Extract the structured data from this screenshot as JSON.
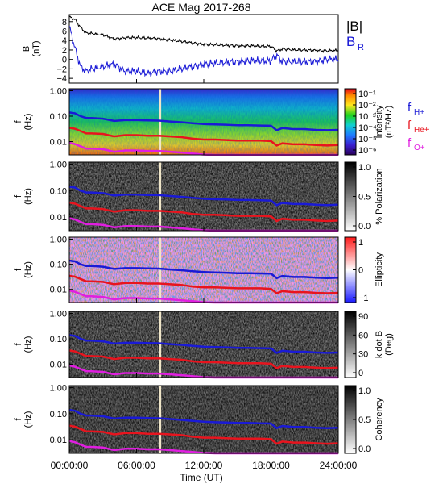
{
  "title": "ACE Mag 2017-268",
  "colors": {
    "B_total": "#000000",
    "B_R": "#1a1ad6",
    "f_H": "#1a1ad6",
    "f_He": "#e8141e",
    "f_O": "#e01ee0",
    "gap_stripe": "#f0e6c8"
  },
  "xaxis": {
    "label": "Time (UT)",
    "ticks": [
      "00:00:00",
      "06:00:00",
      "12:00:00",
      "18:00:00",
      "24:00:00"
    ],
    "range_hours": [
      0,
      24
    ]
  },
  "panels": [
    {
      "id": "b-field",
      "ylabel": "B (nT)",
      "yticks": [
        "8",
        "6",
        "4",
        "2",
        "0",
        "−2",
        "−4"
      ],
      "legend": [
        "|B|",
        "B",
        "R"
      ]
    },
    {
      "id": "intensity",
      "ylabel": "f (Hz)",
      "yticks": [
        "1.00",
        "0.10",
        "0.01"
      ],
      "colorbar_label": "Intensity (nT²/Hz)",
      "colorbar_ticks": [
        "10⁻¹",
        "10⁻²",
        "10⁻³",
        "10⁻⁴",
        "10⁻⁵",
        "10⁻⁶"
      ],
      "gyro_labels": [
        {
          "base": "f",
          "sub": "H+",
          "color": "#1a1ad6"
        },
        {
          "base": "f",
          "sub": "He+",
          "color": "#e8141e"
        },
        {
          "base": "f",
          "sub": "O+",
          "color": "#e01ee0"
        }
      ]
    },
    {
      "id": "polarization",
      "ylabel": "f (Hz)",
      "yticks": [
        "1.00",
        "0.10",
        "0.01"
      ],
      "colorbar_label": "% Polarization",
      "colorbar_ticks": [
        "1.0",
        "0.5",
        "0.0"
      ]
    },
    {
      "id": "ellipticity",
      "ylabel": "f (Hz)",
      "yticks": [
        "1.00",
        "0.10",
        "0.01"
      ],
      "colorbar_label": "Ellipticity",
      "colorbar_ticks": [
        "1",
        "0",
        "−1"
      ]
    },
    {
      "id": "kdotb",
      "ylabel": "f (Hz)",
      "yticks": [
        "1.00",
        "0.10",
        "0.01"
      ],
      "colorbar_label": "k dot B (Deg)",
      "colorbar_ticks": [
        "90",
        "60",
        "30",
        "0"
      ]
    },
    {
      "id": "coherency",
      "ylabel": "f (Hz)",
      "yticks": [
        "1.00",
        "0.10",
        "0.01"
      ],
      "colorbar_label": "Coherency",
      "colorbar_ticks": [
        "1.0",
        "0.5",
        "0.0"
      ]
    }
  ],
  "chart_data": {
    "type": "line",
    "title": "ACE Mag 2017-268",
    "xlabel": "Time (UT)",
    "x_hours": [
      0,
      0.5,
      1,
      1.5,
      2,
      3,
      4,
      5,
      6,
      7,
      8,
      9,
      10,
      11,
      12,
      13,
      14,
      15,
      16,
      17,
      18,
      18.5,
      19,
      20,
      21,
      22,
      23,
      24
    ],
    "data_gap_hours": [
      8.0,
      8.2
    ],
    "series": [
      {
        "name": "|B|",
        "unit": "nT",
        "ylim": [
          -5,
          9.5
        ],
        "values": [
          9,
          8.5,
          6.8,
          5.6,
          5.5,
          5.2,
          4.3,
          4.6,
          4.6,
          4.5,
          4.4,
          4.1,
          3.8,
          3.5,
          3.2,
          3.1,
          3.0,
          2.9,
          2.9,
          2.8,
          2.8,
          1.8,
          2.2,
          2.0,
          2.0,
          1.9,
          1.8,
          1.9
        ]
      },
      {
        "name": "B_R",
        "unit": "nT",
        "ylim": [
          -5,
          9.5
        ],
        "values": [
          7,
          2.5,
          -1.5,
          -2.5,
          -2.0,
          -1.5,
          -1.0,
          -2.5,
          -2.5,
          -3.0,
          -2.5,
          -2.5,
          -2.0,
          -1.5,
          -1.0,
          -0.8,
          -0.6,
          -0.5,
          -0.3,
          -0.3,
          -0.3,
          1.0,
          -0.5,
          -0.5,
          -0.5,
          -0.5,
          0.0,
          0.0
        ]
      },
      {
        "name": "f_H+",
        "unit": "Hz",
        "scale": "log",
        "ylim": [
          0.003,
          1.2
        ],
        "values": [
          0.14,
          0.13,
          0.1,
          0.085,
          0.085,
          0.08,
          0.065,
          0.07,
          0.07,
          0.068,
          0.067,
          0.062,
          0.058,
          0.053,
          0.049,
          0.047,
          0.046,
          0.044,
          0.044,
          0.043,
          0.042,
          0.028,
          0.034,
          0.031,
          0.031,
          0.029,
          0.028,
          0.029
        ]
      },
      {
        "name": "f_He+",
        "unit": "Hz",
        "scale": "log",
        "ylim": [
          0.003,
          1.2
        ],
        "values": [
          0.035,
          0.032,
          0.026,
          0.021,
          0.021,
          0.02,
          0.016,
          0.018,
          0.018,
          0.017,
          0.017,
          0.016,
          0.015,
          0.013,
          0.012,
          0.012,
          0.0115,
          0.011,
          0.011,
          0.011,
          0.0105,
          0.007,
          0.0085,
          0.0078,
          0.0078,
          0.0073,
          0.007,
          0.0073
        ]
      },
      {
        "name": "f_O+",
        "unit": "Hz",
        "scale": "log",
        "ylim": [
          0.003,
          1.2
        ],
        "values": [
          0.009,
          0.008,
          0.0065,
          0.0053,
          0.0053,
          0.005,
          0.004,
          0.0045,
          0.0045,
          0.0043,
          0.0043,
          0.004,
          0.0037,
          0.0034,
          0.0031,
          0.003,
          0.003,
          0.003,
          0.003,
          0.003,
          0.003,
          0.003,
          0.003,
          0.003,
          0.003,
          0.003,
          0.003,
          0.003
        ]
      }
    ]
  }
}
